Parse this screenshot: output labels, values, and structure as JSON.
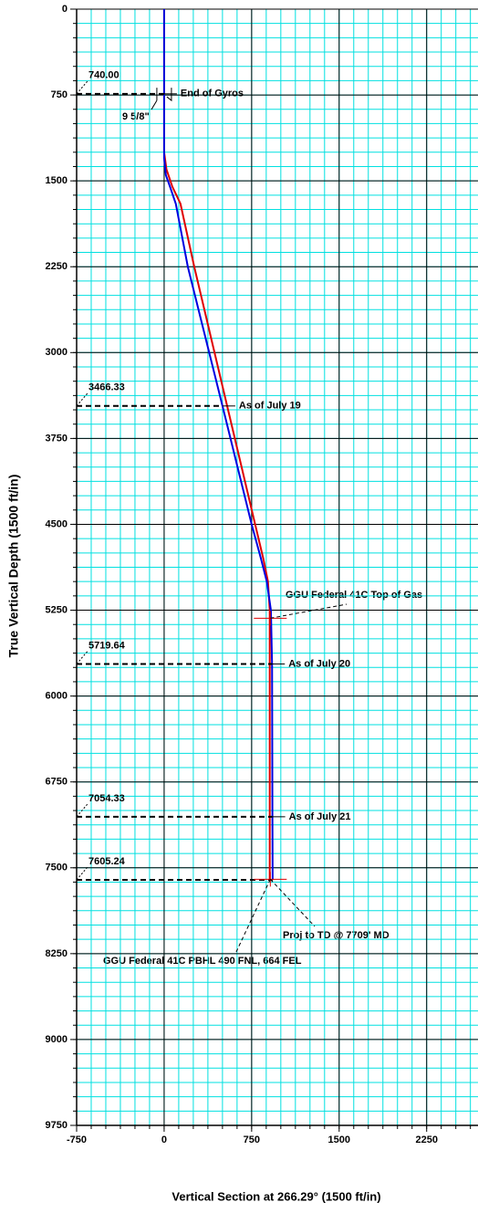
{
  "chart_data": {
    "type": "line",
    "xlabel": "Vertical Section at 266.29° (1500 ft/in)",
    "ylabel": "True Vertical Depth (1500 ft/in)",
    "xlim": [
      -750,
      2690
    ],
    "ylim": [
      0,
      9750
    ],
    "y_inverted": true,
    "xticks": [
      -750,
      0,
      750,
      1500,
      2250
    ],
    "yticks": [
      0,
      750,
      1500,
      2250,
      3000,
      3750,
      4500,
      5250,
      6000,
      6750,
      7500,
      8250,
      9000,
      9750
    ],
    "grid": true,
    "series": [
      {
        "color": "#e00000",
        "x": [
          0,
          0,
          20,
          70,
          140,
          258,
          540,
          780,
          850,
          890,
          905,
          905
        ],
        "values": [
          0,
          1250,
          1400,
          1550,
          1700,
          2250,
          3466,
          4500,
          4800,
          5000,
          5250,
          7605
        ]
      },
      {
        "color": "#0000e0",
        "x": [
          0,
          0,
          15,
          50,
          100,
          203,
          500,
          750,
          830,
          880,
          915,
          925,
          928,
          930
        ],
        "values": [
          0,
          1300,
          1450,
          1550,
          1700,
          2250,
          3466,
          4500,
          4800,
          5000,
          5250,
          5719,
          7054,
          7605
        ]
      }
    ],
    "markers": [
      {
        "depth": {
          "value": 740,
          "label": "740.00"
        },
        "text": "End of Gyros"
      },
      {
        "depth": 3466.33,
        "text": "As of July 19"
      },
      {
        "depth": 5719.64,
        "text": "As of July 20"
      },
      {
        "depth": 7054.33,
        "text": "As of July 21"
      },
      {
        "depth": 7605.24
      }
    ],
    "casing": {
      "label": "9 5/8\"",
      "y": 750
    },
    "targets": [
      {
        "label": "GGU Federal 41C Top of Gas",
        "x": 910,
        "y": 5320
      },
      {
        "label": "GGU Federal 41C PBHL 490 FNL, 664 FEL",
        "x": 910,
        "y": 7600
      }
    ],
    "projection_label": "Proj to TD @ 7709' MD"
  }
}
